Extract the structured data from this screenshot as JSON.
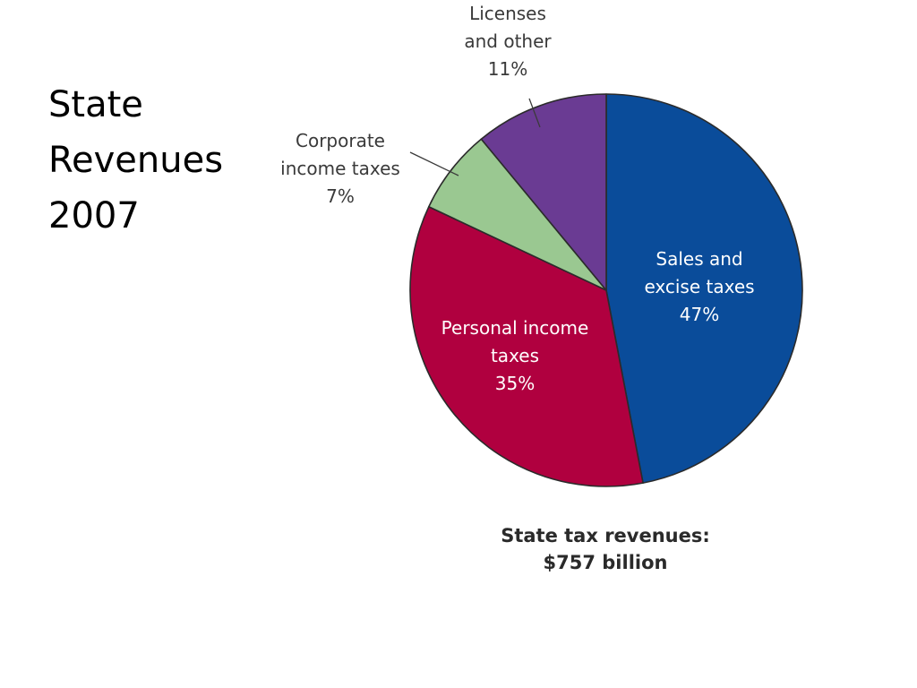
{
  "slide": {
    "title_lines": [
      "State",
      "Revenues",
      "2007"
    ]
  },
  "chart_data": {
    "type": "pie",
    "caption_lines": [
      "State tax revenues:",
      "$757 billion"
    ],
    "slices": [
      {
        "label_lines": [
          "Sales and",
          "excise taxes"
        ],
        "value": 47,
        "value_label": "47%",
        "color": "#0a4c9a"
      },
      {
        "label_lines": [
          "Personal income",
          "taxes"
        ],
        "value": 35,
        "value_label": "35%",
        "color": "#b0003f"
      },
      {
        "label_lines": [
          "Corporate",
          "income taxes"
        ],
        "value": 7,
        "value_label": "7%",
        "color": "#9ac891"
      },
      {
        "label_lines": [
          "Licenses",
          "and other"
        ],
        "value": 11,
        "value_label": "11%",
        "color": "#6a3b93"
      }
    ]
  }
}
